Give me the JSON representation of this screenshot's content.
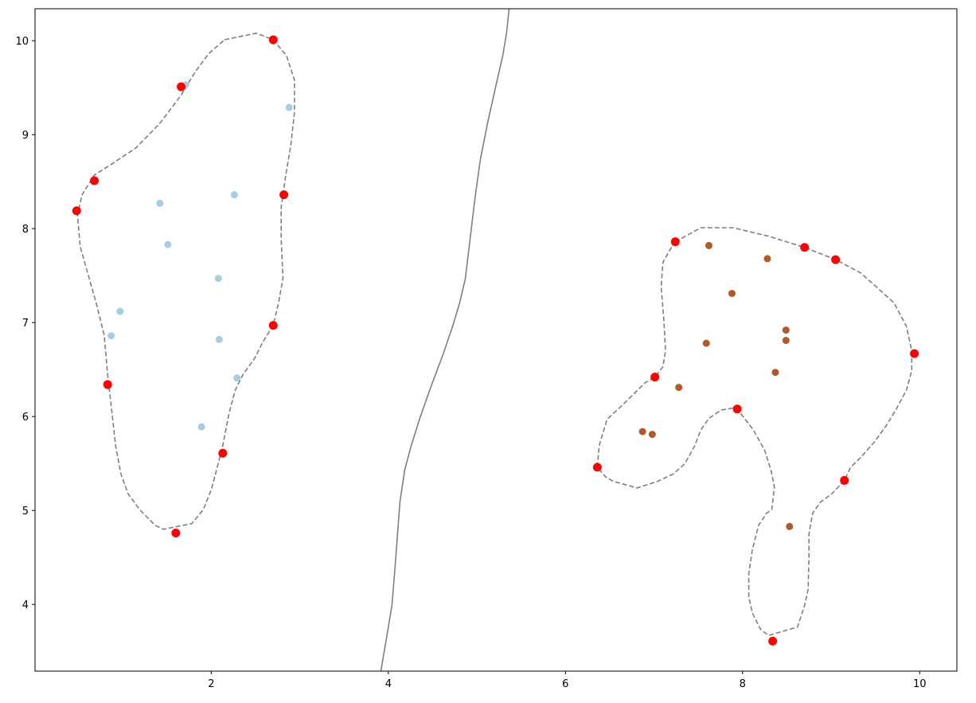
{
  "chart_data": {
    "type": "scatter",
    "xlim": [
      0.01,
      10.42
    ],
    "ylim": [
      3.29,
      10.34
    ],
    "xticks": [
      2,
      4,
      6,
      8,
      10
    ],
    "yticks": [
      4,
      5,
      6,
      7,
      8,
      9,
      10
    ],
    "series": [
      {
        "color": "#a6cee3",
        "x": [
          1.71,
          2.88,
          1.42,
          2.26,
          1.51,
          2.08,
          0.97,
          0.87,
          2.09,
          2.29,
          1.89
        ],
        "values": [
          9.53,
          9.29,
          8.27,
          8.36,
          7.83,
          7.47,
          7.12,
          6.86,
          6.82,
          6.41,
          5.89
        ]
      },
      {
        "color": "#b15928",
        "x": [
          7.62,
          8.28,
          7.88,
          8.49,
          8.49,
          7.59,
          8.37,
          7.28,
          6.87,
          6.98,
          8.53
        ],
        "values": [
          7.82,
          7.68,
          7.31,
          6.92,
          6.81,
          6.78,
          6.47,
          6.31,
          5.84,
          5.81,
          4.83
        ]
      },
      {
        "color": "#ff0000",
        "x": [
          2.7,
          1.66,
          0.68,
          0.48,
          2.82,
          2.7,
          0.83,
          2.13,
          1.6,
          7.24,
          8.7,
          9.05,
          9.94,
          7.01,
          7.94,
          6.36,
          9.15,
          8.34
        ],
        "values": [
          10.01,
          9.51,
          8.51,
          8.19,
          8.36,
          6.97,
          6.34,
          5.61,
          4.76,
          7.86,
          7.8,
          7.67,
          6.67,
          6.42,
          6.08,
          5.46,
          5.32,
          3.61
        ]
      }
    ],
    "lines": [
      {
        "color": "#7f7f7f",
        "style": "solid",
        "closed": false,
        "x": [
          5.363,
          5.336,
          5.291,
          5.21,
          5.129,
          5.039,
          4.977,
          4.923,
          4.869,
          4.806,
          4.725,
          4.617,
          4.482,
          4.356,
          4.257,
          4.185,
          4.131,
          4.104,
          4.077,
          4.041,
          3.996,
          3.915
        ],
        "values": [
          10.339,
          10.093,
          9.839,
          9.5,
          9.161,
          8.737,
          8.314,
          7.89,
          7.466,
          7.212,
          6.958,
          6.661,
          6.322,
          5.983,
          5.686,
          5.432,
          5.093,
          4.754,
          4.415,
          3.992,
          3.737,
          3.288
        ]
      },
      {
        "color": "#7f7f7f",
        "style": "dashed",
        "closed": true,
        "x": [
          2.15,
          2.51,
          2.7,
          2.85,
          2.94,
          2.94,
          2.9,
          2.84,
          2.79,
          2.79,
          2.81,
          2.76,
          2.7,
          2.58,
          2.49,
          2.36,
          2.27,
          2.2,
          2.13,
          2.06,
          2.0,
          1.91,
          1.78,
          1.46,
          1.37,
          1.19,
          1.06,
          0.98,
          0.92,
          0.88,
          0.83,
          0.79,
          0.7,
          0.61,
          0.52,
          0.49,
          0.54,
          0.68,
          0.88,
          1.15,
          1.42,
          1.66,
          1.82,
          1.97
        ],
        "values": [
          10.01,
          10.08,
          10.01,
          9.84,
          9.58,
          9.24,
          8.9,
          8.56,
          8.23,
          7.89,
          7.47,
          7.21,
          6.97,
          6.79,
          6.62,
          6.45,
          6.28,
          6.03,
          5.69,
          5.43,
          5.22,
          5.01,
          4.86,
          4.8,
          4.84,
          5.01,
          5.18,
          5.39,
          5.69,
          6.03,
          6.45,
          6.87,
          7.21,
          7.51,
          7.81,
          8.14,
          8.36,
          8.57,
          8.69,
          8.86,
          9.12,
          9.42,
          9.67,
          9.86
        ]
      },
      {
        "color": "#7f7f7f",
        "style": "dashed",
        "closed": true,
        "x": [
          7.24,
          7.53,
          7.89,
          8.29,
          8.7,
          9.05,
          9.33,
          9.51,
          9.71,
          9.85,
          9.91,
          9.91,
          9.85,
          9.73,
          9.62,
          9.49,
          9.33,
          9.22,
          9.15,
          9.01,
          8.88,
          8.79,
          8.75,
          8.75,
          8.74,
          8.7,
          8.62,
          8.29,
          8.2,
          8.11,
          8.07,
          8.07,
          8.11,
          8.18,
          8.27,
          8.33,
          8.36,
          8.32,
          8.25,
          8.12,
          7.98,
          7.89,
          7.76,
          7.62,
          7.53,
          7.46,
          7.35,
          7.22,
          7.04,
          6.81,
          6.54,
          6.45,
          6.36,
          6.38,
          6.47,
          6.63,
          6.77,
          6.9,
          7.01,
          7.1,
          7.13,
          7.11,
          7.08,
          7.1,
          7.17
        ],
        "values": [
          7.86,
          8.01,
          8.01,
          7.92,
          7.8,
          7.67,
          7.53,
          7.38,
          7.21,
          6.96,
          6.7,
          6.49,
          6.28,
          6.07,
          5.9,
          5.73,
          5.56,
          5.46,
          5.32,
          5.18,
          5.09,
          4.97,
          4.75,
          4.5,
          4.16,
          3.99,
          3.76,
          3.67,
          3.74,
          3.91,
          4.08,
          4.33,
          4.58,
          4.84,
          4.97,
          5.01,
          5.25,
          5.43,
          5.64,
          5.86,
          6.03,
          6.09,
          6.07,
          5.98,
          5.86,
          5.69,
          5.5,
          5.39,
          5.31,
          5.24,
          5.31,
          5.36,
          5.46,
          5.69,
          5.97,
          6.11,
          6.24,
          6.36,
          6.42,
          6.53,
          6.7,
          7.04,
          7.38,
          7.64,
          7.76
        ]
      }
    ]
  }
}
